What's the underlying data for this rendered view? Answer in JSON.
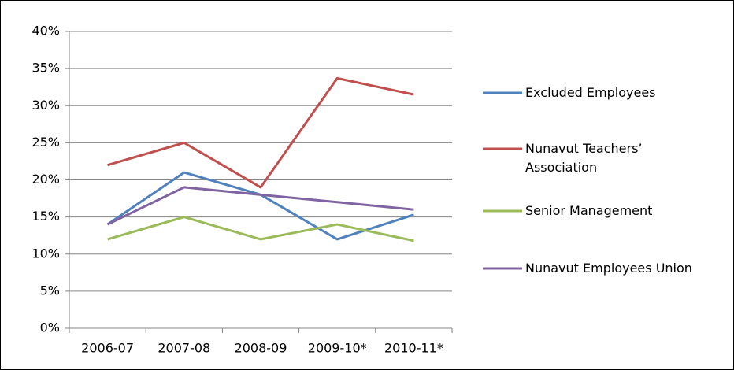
{
  "chart_data": {
    "type": "line",
    "categories": [
      "2006-07",
      "2007-08",
      "2008-09",
      "2009-10*",
      "2010-11*"
    ],
    "series": [
      {
        "name": "Excluded Employees",
        "color": "#4f81bd",
        "values": [
          14,
          21,
          18,
          12,
          15.3
        ]
      },
      {
        "name": "Nunavut Teachers’ Association",
        "color": "#c0504d",
        "values": [
          22,
          25,
          19,
          33.7,
          31.5
        ]
      },
      {
        "name": "Senior Management",
        "color": "#9bbb59",
        "values": [
          12,
          15,
          12,
          14,
          11.8
        ]
      },
      {
        "name": "Nunavut Employees Union",
        "color": "#8064a2",
        "values": [
          14,
          19,
          18,
          17,
          16
        ]
      }
    ],
    "ylim": [
      0,
      40
    ],
    "yticks": [
      {
        "value": 0,
        "label": "0%"
      },
      {
        "value": 5,
        "label": "5%"
      },
      {
        "value": 10,
        "label": "10%"
      },
      {
        "value": 15,
        "label": "15%"
      },
      {
        "value": 20,
        "label": "20%"
      },
      {
        "value": 25,
        "label": "25%"
      },
      {
        "value": 30,
        "label": "30%"
      },
      {
        "value": 35,
        "label": "35%"
      },
      {
        "value": 40,
        "label": "40%"
      }
    ],
    "grid": true,
    "legend": "right"
  }
}
